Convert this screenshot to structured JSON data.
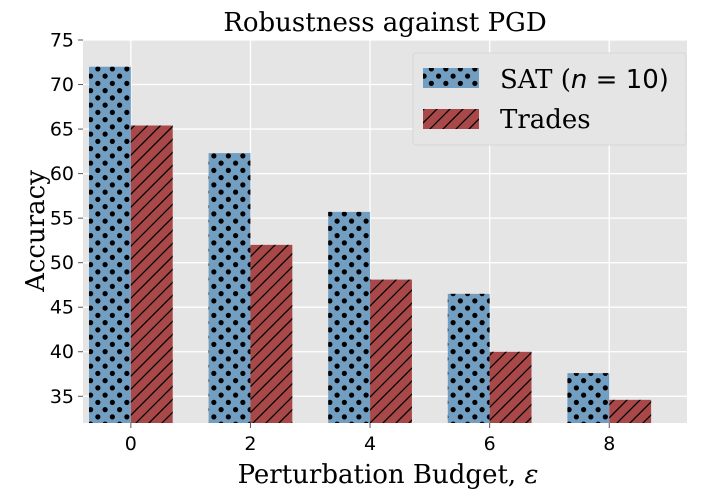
{
  "chart_data": {
    "type": "bar",
    "title": "Robustness against PGD",
    "xlabel_text": "Perturbation Budget, ",
    "xlabel_symbol": "ε",
    "ylabel": "Accuracy",
    "categories": [
      "0",
      "2",
      "4",
      "6",
      "8"
    ],
    "x": [
      0,
      2,
      4,
      6,
      8
    ],
    "ylim": [
      32,
      75
    ],
    "yticks": [
      35,
      40,
      45,
      50,
      55,
      60,
      65,
      70,
      75
    ],
    "grid": true,
    "legend_position": "top-right",
    "series": [
      {
        "name": "SAT",
        "legend_text": "SAT (",
        "legend_math": "n",
        "legend_math_rest": " = 10)",
        "values": [
          72.0,
          62.3,
          55.7,
          46.5,
          37.6
        ],
        "color": "#729ec2",
        "hatch": "dots"
      },
      {
        "name": "Trades",
        "legend_text": "Trades",
        "values": [
          65.4,
          52.0,
          48.1,
          40.0,
          34.6
        ],
        "color": "#a84848",
        "hatch": "diagonal"
      }
    ]
  },
  "colors": {
    "plot_background": "#e5e5e5",
    "grid": "#ffffff",
    "text": "#000000"
  }
}
